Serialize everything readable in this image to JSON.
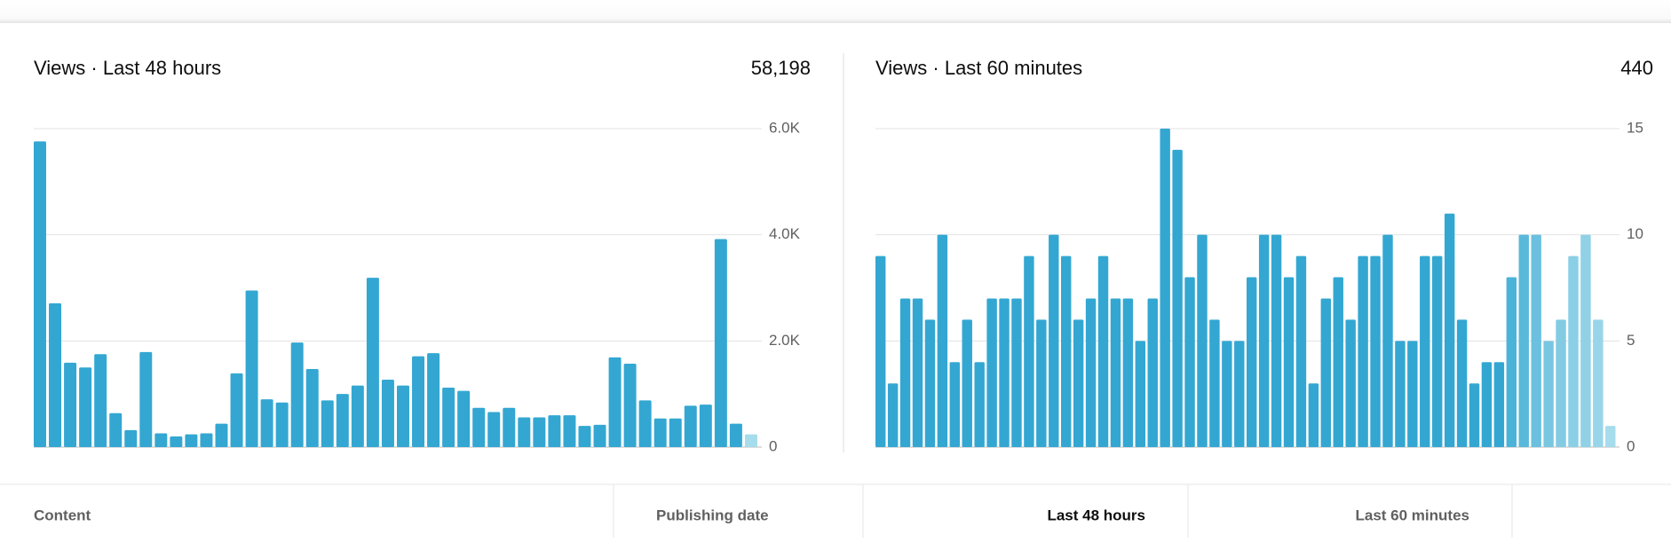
{
  "chart_data": [
    {
      "type": "bar",
      "title": "Views · Last 48 hours",
      "total": "58,198",
      "values": [
        5760,
        2710,
        1590,
        1500,
        1750,
        640,
        320,
        1790,
        260,
        200,
        240,
        260,
        440,
        1390,
        2950,
        900,
        840,
        1970,
        1470,
        880,
        1000,
        1160,
        3190,
        1270,
        1160,
        1710,
        1770,
        1120,
        1060,
        740,
        660,
        740,
        560,
        560,
        600,
        600,
        400,
        420,
        1690,
        1570,
        880,
        540,
        540,
        780,
        800,
        3920,
        440,
        240
      ],
      "colors": [
        "#33a7d2",
        "#33a7d2",
        "#33a7d2",
        "#33a7d2",
        "#33a7d2",
        "#33a7d2",
        "#33a7d2",
        "#33a7d2",
        "#33a7d2",
        "#33a7d2",
        "#33a7d2",
        "#33a7d2",
        "#33a7d2",
        "#33a7d2",
        "#33a7d2",
        "#33a7d2",
        "#33a7d2",
        "#33a7d2",
        "#33a7d2",
        "#33a7d2",
        "#33a7d2",
        "#33a7d2",
        "#33a7d2",
        "#33a7d2",
        "#33a7d2",
        "#33a7d2",
        "#33a7d2",
        "#33a7d2",
        "#33a7d2",
        "#33a7d2",
        "#33a7d2",
        "#33a7d2",
        "#33a7d2",
        "#33a7d2",
        "#33a7d2",
        "#33a7d2",
        "#33a7d2",
        "#33a7d2",
        "#33a7d2",
        "#33a7d2",
        "#33a7d2",
        "#33a7d2",
        "#33a7d2",
        "#33a7d2",
        "#33a7d2",
        "#33a7d2",
        "#33a7d2",
        "#a6dcec"
      ],
      "ylim": [
        0,
        6000
      ],
      "yticks": [
        0,
        {
          "value": 2000,
          "label": "2.0K"
        },
        {
          "value": 4000,
          "label": "4.0K"
        },
        {
          "value": 6000,
          "label": "6.0K"
        }
      ],
      "grid": true
    },
    {
      "type": "bar",
      "title": "Views · Last 60 minutes",
      "total": "440",
      "values": [
        9,
        3,
        7,
        7,
        6,
        10,
        4,
        6,
        4,
        7,
        7,
        7,
        9,
        6,
        10,
        9,
        6,
        7,
        9,
        7,
        7,
        5,
        7,
        15,
        14,
        8,
        10,
        6,
        5,
        5,
        8,
        10,
        10,
        8,
        9,
        3,
        7,
        8,
        6,
        9,
        9,
        10,
        5,
        5,
        9,
        9,
        11,
        6,
        3,
        4,
        4,
        8,
        10,
        10,
        5,
        6,
        9,
        10,
        6,
        1
      ],
      "colors": [
        "#33a7d2",
        "#33a7d2",
        "#33a7d2",
        "#33a7d2",
        "#33a7d2",
        "#33a7d2",
        "#33a7d2",
        "#33a7d2",
        "#33a7d2",
        "#33a7d2",
        "#33a7d2",
        "#33a7d2",
        "#33a7d2",
        "#33a7d2",
        "#33a7d2",
        "#33a7d2",
        "#33a7d2",
        "#33a7d2",
        "#33a7d2",
        "#33a7d2",
        "#33a7d2",
        "#33a7d2",
        "#33a7d2",
        "#33a7d2",
        "#33a7d2",
        "#33a7d2",
        "#33a7d2",
        "#33a7d2",
        "#33a7d2",
        "#33a7d2",
        "#33a7d2",
        "#33a7d2",
        "#33a7d2",
        "#33a7d2",
        "#33a7d2",
        "#33a7d2",
        "#33a7d2",
        "#33a7d2",
        "#33a7d2",
        "#33a7d2",
        "#33a7d2",
        "#33a7d2",
        "#33a7d2",
        "#33a7d2",
        "#33a7d2",
        "#33a7d2",
        "#33a7d2",
        "#33a7d2",
        "#33a7d2",
        "#33a7d2",
        "#33a7d2",
        "#4cb3d8",
        "#5ab9db",
        "#6ac0de",
        "#78c7e1",
        "#82cbe3",
        "#8acfe5",
        "#90d1e6",
        "#98d5e8",
        "#a6dcec"
      ],
      "ylim": [
        0,
        15
      ],
      "yticks": [
        0,
        5,
        10,
        15
      ],
      "grid": true
    }
  ],
  "table": {
    "headers": [
      "Content",
      "Publishing date",
      "Last 48 hours",
      "Last 60 minutes"
    ]
  }
}
